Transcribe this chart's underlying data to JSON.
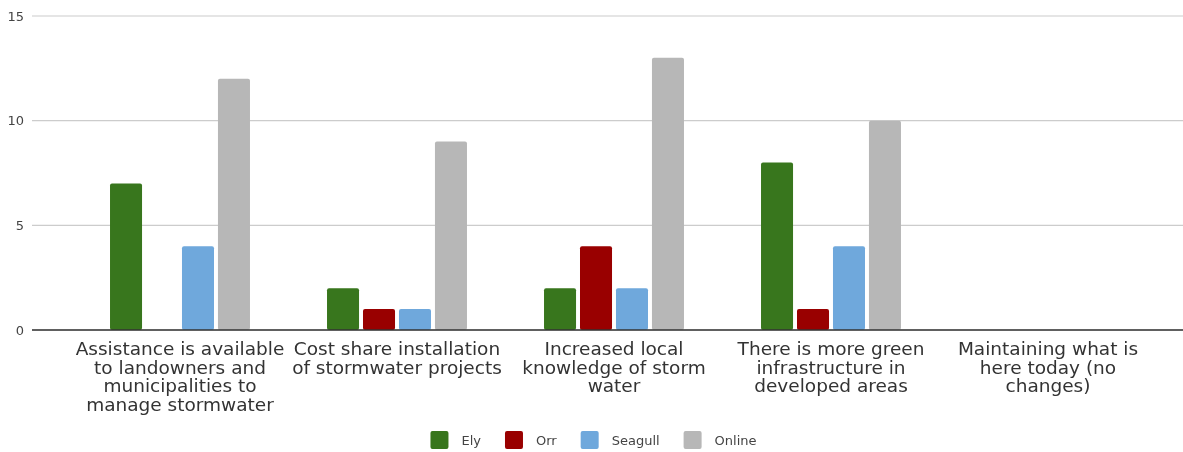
{
  "chart_data": {
    "type": "bar",
    "categories": [
      "Assistance is available to landowners and municipalities to manage stormwater",
      "Cost share installation of stormwater projects",
      "Increased local knowledge of storm water",
      "There is more green infrastructure in developed areas",
      "Maintaining what is here today (no changes)"
    ],
    "series": [
      {
        "name": "Ely",
        "color": "#38761d",
        "values": [
          7,
          2,
          2,
          8,
          0
        ]
      },
      {
        "name": "Orr",
        "color": "#990000",
        "values": [
          0,
          1,
          4,
          1,
          0
        ]
      },
      {
        "name": "Seagull",
        "color": "#6fa8dc",
        "values": [
          4,
          1,
          2,
          4,
          0
        ]
      },
      {
        "name": "Online",
        "color": "#b7b7b7",
        "values": [
          12,
          9,
          13,
          10,
          0
        ]
      }
    ],
    "ylim": [
      0,
      15
    ],
    "yticks": [
      0,
      5,
      10,
      15
    ],
    "grid": "y",
    "legend": "bottom"
  }
}
